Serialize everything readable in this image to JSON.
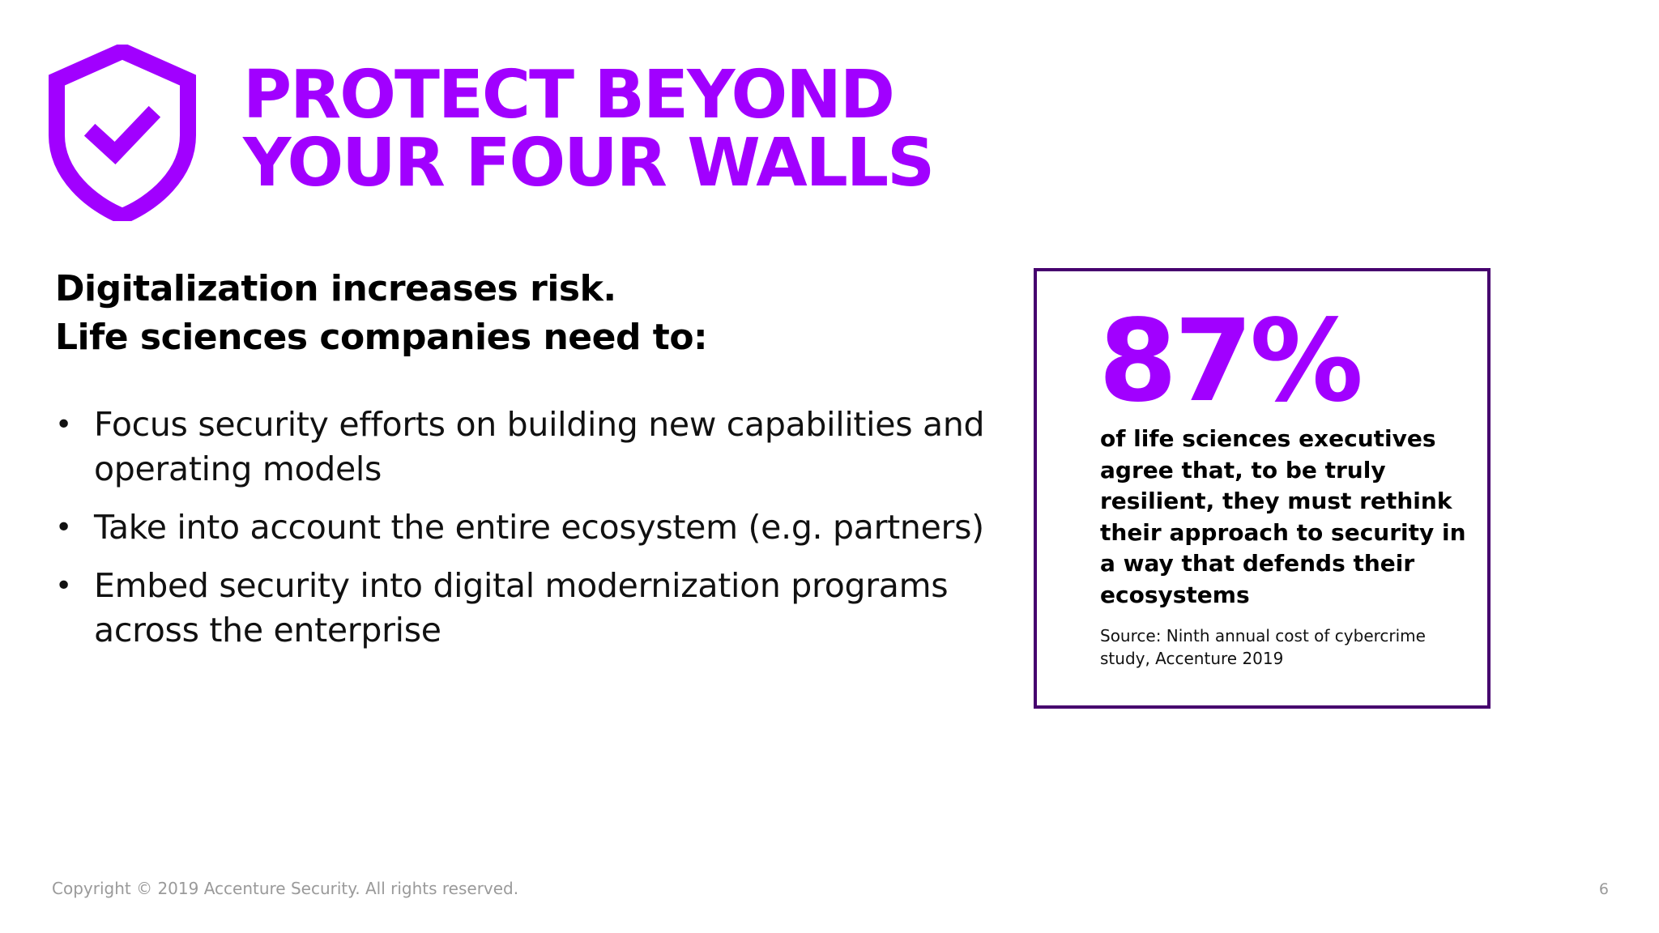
{
  "slide": {
    "icon": "shield-check-icon",
    "accent_color": "#a100ff",
    "box_border_color": "#46006e",
    "title_lines": [
      "PROTECT BEYOND",
      "YOUR FOUR WALLS"
    ],
    "intro_lines": [
      "Digitalization increases risk.",
      "Life sciences companies need to:"
    ],
    "bullet_marker": "•",
    "bullets": [
      "Focus security efforts on building new capabilities and operating models",
      "Take into account the entire ecosystem (e.g. partners)",
      "Embed security into digital modernization programs across the enterprise"
    ],
    "stat": {
      "value": "87%",
      "text_lines": [
        "of life sciences executives",
        "agree that, to be truly",
        "resilient, they must rethink",
        "their approach to security in",
        "a way that defends their",
        "ecosystems"
      ],
      "source_lines": [
        "Source: Ninth annual cost of cybercrime",
        "study, Accenture 2019"
      ]
    },
    "footer": {
      "copyright": "Copyright © 2019 Accenture Security. All rights reserved.",
      "page_number": "6"
    }
  }
}
